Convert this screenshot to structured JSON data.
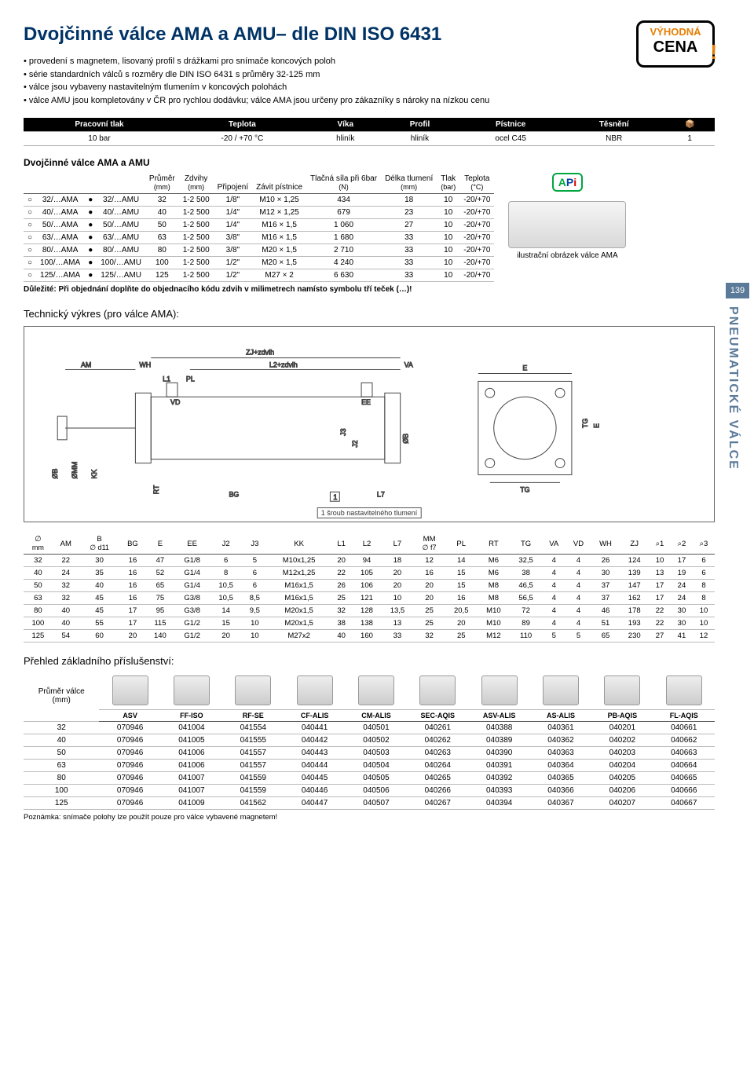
{
  "title": "Dvojčinné válce AMA a AMU– dle DIN ISO 6431",
  "bullets": [
    "provedení s magnetem, lisovaný profil s drážkami pro snímače koncových poloh",
    "série standardních válců s rozměry dle DIN ISO 6431 s průměry 32-125 mm",
    "válce jsou vybaveny nastavitelným tlumením v koncových polohách",
    "válce AMU jsou kompletovány v ČR pro rychlou dodávku; válce AMA jsou určeny pro zákazníky s nároky na nízkou cenu"
  ],
  "badge": {
    "line1": "VÝHODNÁ",
    "line2": "CENA",
    "bang": "!"
  },
  "material_table": {
    "headers": [
      "Pracovní tlak",
      "Teplota",
      "Víka",
      "Profil",
      "Pístnice",
      "Těsnění",
      "📦"
    ],
    "row": [
      "10 bar",
      "-20 / +70 °C",
      "hliník",
      "hliník",
      "ocel C45",
      "NBR",
      "1"
    ]
  },
  "section1_title": "Dvojčinné válce AMA a AMU",
  "data_table": {
    "headers": [
      "",
      "",
      "",
      "",
      "Průměr (mm)",
      "Zdvihy (mm)",
      "Připojení",
      "Závit pístnice",
      "Tlačná síla při 6bar (N)",
      "Délka tlumení (mm)",
      "Tlak (bar)",
      "Teplota (°C)"
    ],
    "rows": [
      [
        "○",
        "32/…AMA",
        "●",
        "32/…AMU",
        "32",
        "1-2 500",
        "1/8\"",
        "M10 × 1,25",
        "434",
        "18",
        "10",
        "-20/+70"
      ],
      [
        "○",
        "40/…AMA",
        "●",
        "40/…AMU",
        "40",
        "1-2 500",
        "1/4\"",
        "M12 × 1,25",
        "679",
        "23",
        "10",
        "-20/+70"
      ],
      [
        "○",
        "50/…AMA",
        "●",
        "50/…AMU",
        "50",
        "1-2 500",
        "1/4\"",
        "M16 × 1,5",
        "1 060",
        "27",
        "10",
        "-20/+70"
      ],
      [
        "○",
        "63/…AMA",
        "●",
        "63/…AMU",
        "63",
        "1-2 500",
        "3/8\"",
        "M16 × 1,5",
        "1 680",
        "33",
        "10",
        "-20/+70"
      ],
      [
        "○",
        "80/…AMA",
        "●",
        "80/…AMU",
        "80",
        "1-2 500",
        "3/8\"",
        "M20 × 1,5",
        "2 710",
        "33",
        "10",
        "-20/+70"
      ],
      [
        "○",
        "100/…AMA",
        "●",
        "100/…AMU",
        "100",
        "1-2 500",
        "1/2\"",
        "M20 × 1,5",
        "4 240",
        "33",
        "10",
        "-20/+70"
      ],
      [
        "○",
        "125/…AMA",
        "●",
        "125/…AMU",
        "125",
        "1-2 500",
        "1/2\"",
        "M27 × 2",
        "6 630",
        "33",
        "10",
        "-20/+70"
      ]
    ],
    "note": "Důležité: Při objednání doplňte do objednacího kódu zdvih v milimetrech namísto symbolu tří teček (…)!"
  },
  "api_logo": {
    "a": "A",
    "p": "P",
    "i": "i"
  },
  "cyl_caption": "ilustrační obrázek válce AMA",
  "page_num": "139",
  "side_text": "PNEUMATICKÉ VÁLCE",
  "drawing_title": "Technický výkres (pro válce AMA):",
  "drawing_labels": {
    "zj": "ZJ+zdvih",
    "am": "AM",
    "wh": "WH",
    "l2": "L2+zdvih",
    "va": "VA",
    "l1": "L1",
    "pl": "PL",
    "vd": "VD",
    "ee": "EE",
    "ob": "ØB",
    "omm": "ØMM",
    "kk": "KK",
    "rt": "RT",
    "bg": "BG",
    "l7": "L7",
    "one": "1",
    "e": "E",
    "tg": "TG",
    "tg2": "TG",
    "e2": "E",
    "j3": "J3",
    "j2": "J2",
    "ob2": "ØB"
  },
  "drawing_caption": "1  šroub nastavitelného tlumení",
  "dim_table": {
    "headers": [
      "∅ mm",
      "AM",
      "B ∅ d11",
      "BG",
      "E",
      "EE",
      "J2",
      "J3",
      "KK",
      "L1",
      "L2",
      "L7",
      "MM ∅ f7",
      "PL",
      "RT",
      "TG",
      "VA",
      "VD",
      "WH",
      "ZJ",
      "⌕1",
      "⌕2",
      "⌕3"
    ],
    "rows": [
      [
        "32",
        "22",
        "30",
        "16",
        "47",
        "G1/8",
        "6",
        "5",
        "M10x1,25",
        "20",
        "94",
        "18",
        "12",
        "14",
        "M6",
        "32,5",
        "4",
        "4",
        "26",
        "124",
        "10",
        "17",
        "6"
      ],
      [
        "40",
        "24",
        "35",
        "16",
        "52",
        "G1/4",
        "8",
        "6",
        "M12x1,25",
        "22",
        "105",
        "20",
        "16",
        "15",
        "M6",
        "38",
        "4",
        "4",
        "30",
        "139",
        "13",
        "19",
        "6"
      ],
      [
        "50",
        "32",
        "40",
        "16",
        "65",
        "G1/4",
        "10,5",
        "6",
        "M16x1,5",
        "26",
        "106",
        "20",
        "20",
        "15",
        "M8",
        "46,5",
        "4",
        "4",
        "37",
        "147",
        "17",
        "24",
        "8"
      ],
      [
        "63",
        "32",
        "45",
        "16",
        "75",
        "G3/8",
        "10,5",
        "8,5",
        "M16x1,5",
        "25",
        "121",
        "10",
        "20",
        "16",
        "M8",
        "56,5",
        "4",
        "4",
        "37",
        "162",
        "17",
        "24",
        "8"
      ],
      [
        "80",
        "40",
        "45",
        "17",
        "95",
        "G3/8",
        "14",
        "9,5",
        "M20x1,5",
        "32",
        "128",
        "13,5",
        "25",
        "20,5",
        "M10",
        "72",
        "4",
        "4",
        "46",
        "178",
        "22",
        "30",
        "10"
      ],
      [
        "100",
        "40",
        "55",
        "17",
        "115",
        "G1/2",
        "15",
        "10",
        "M20x1,5",
        "38",
        "138",
        "13",
        "25",
        "20",
        "M10",
        "89",
        "4",
        "4",
        "51",
        "193",
        "22",
        "30",
        "10"
      ],
      [
        "125",
        "54",
        "60",
        "20",
        "140",
        "G1/2",
        "20",
        "10",
        "M27x2",
        "40",
        "160",
        "33",
        "32",
        "25",
        "M12",
        "110",
        "5",
        "5",
        "65",
        "230",
        "27",
        "41",
        "12"
      ]
    ]
  },
  "acc_title": "Přehled základního příslušenství:",
  "acc_table": {
    "rowhead": "Průměr válce (mm)",
    "col_headers": [
      "ASV",
      "FF-ISO",
      "RF-SE",
      "CF-ALIS",
      "CM-ALIS",
      "SEC-AQIS",
      "ASV-ALIS",
      "AS-ALIS",
      "PB-AQIS",
      "FL-AQIS"
    ],
    "rows": [
      [
        "32",
        "070946",
        "041004",
        "041554",
        "040441",
        "040501",
        "040261",
        "040388",
        "040361",
        "040201",
        "040661"
      ],
      [
        "40",
        "070946",
        "041005",
        "041555",
        "040442",
        "040502",
        "040262",
        "040389",
        "040362",
        "040202",
        "040662"
      ],
      [
        "50",
        "070946",
        "041006",
        "041557",
        "040443",
        "040503",
        "040263",
        "040390",
        "040363",
        "040203",
        "040663"
      ],
      [
        "63",
        "070946",
        "041006",
        "041557",
        "040444",
        "040504",
        "040264",
        "040391",
        "040364",
        "040204",
        "040664"
      ],
      [
        "80",
        "070946",
        "041007",
        "041559",
        "040445",
        "040505",
        "040265",
        "040392",
        "040365",
        "040205",
        "040665"
      ],
      [
        "100",
        "070946",
        "041007",
        "041559",
        "040446",
        "040506",
        "040266",
        "040393",
        "040366",
        "040206",
        "040666"
      ],
      [
        "125",
        "070946",
        "041009",
        "041562",
        "040447",
        "040507",
        "040267",
        "040394",
        "040367",
        "040207",
        "040667"
      ]
    ],
    "footnote": "Poznámka: snímače polohy lze použít pouze pro válce vybavené magnetem!"
  }
}
